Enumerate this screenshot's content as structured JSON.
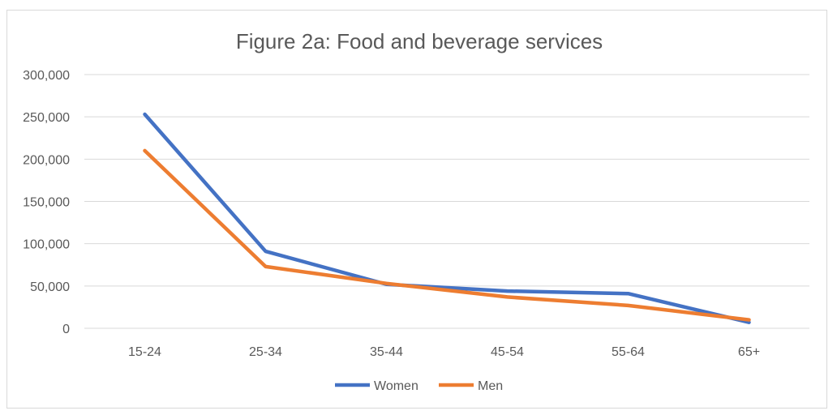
{
  "chart_data": {
    "type": "line",
    "title": "Figure 2a: Food and beverage services",
    "xlabel": "",
    "ylabel": "",
    "categories": [
      "15-24",
      "25-34",
      "35-44",
      "45-54",
      "55-64",
      "65+"
    ],
    "ylim": [
      0,
      300000
    ],
    "yticks": [
      "0",
      "50,000",
      "100,000",
      "150,000",
      "200,000",
      "250,000",
      "300,000"
    ],
    "ytick_values": [
      0,
      50000,
      100000,
      150000,
      200000,
      250000,
      300000
    ],
    "grid": true,
    "legend_position": "bottom",
    "series": [
      {
        "name": "Women",
        "color": "#4472c4",
        "values": [
          253000,
          91000,
          52000,
          44000,
          41000,
          7000
        ]
      },
      {
        "name": "Men",
        "color": "#ed7d31",
        "values": [
          210000,
          73000,
          53000,
          37000,
          27000,
          10000
        ]
      }
    ]
  }
}
